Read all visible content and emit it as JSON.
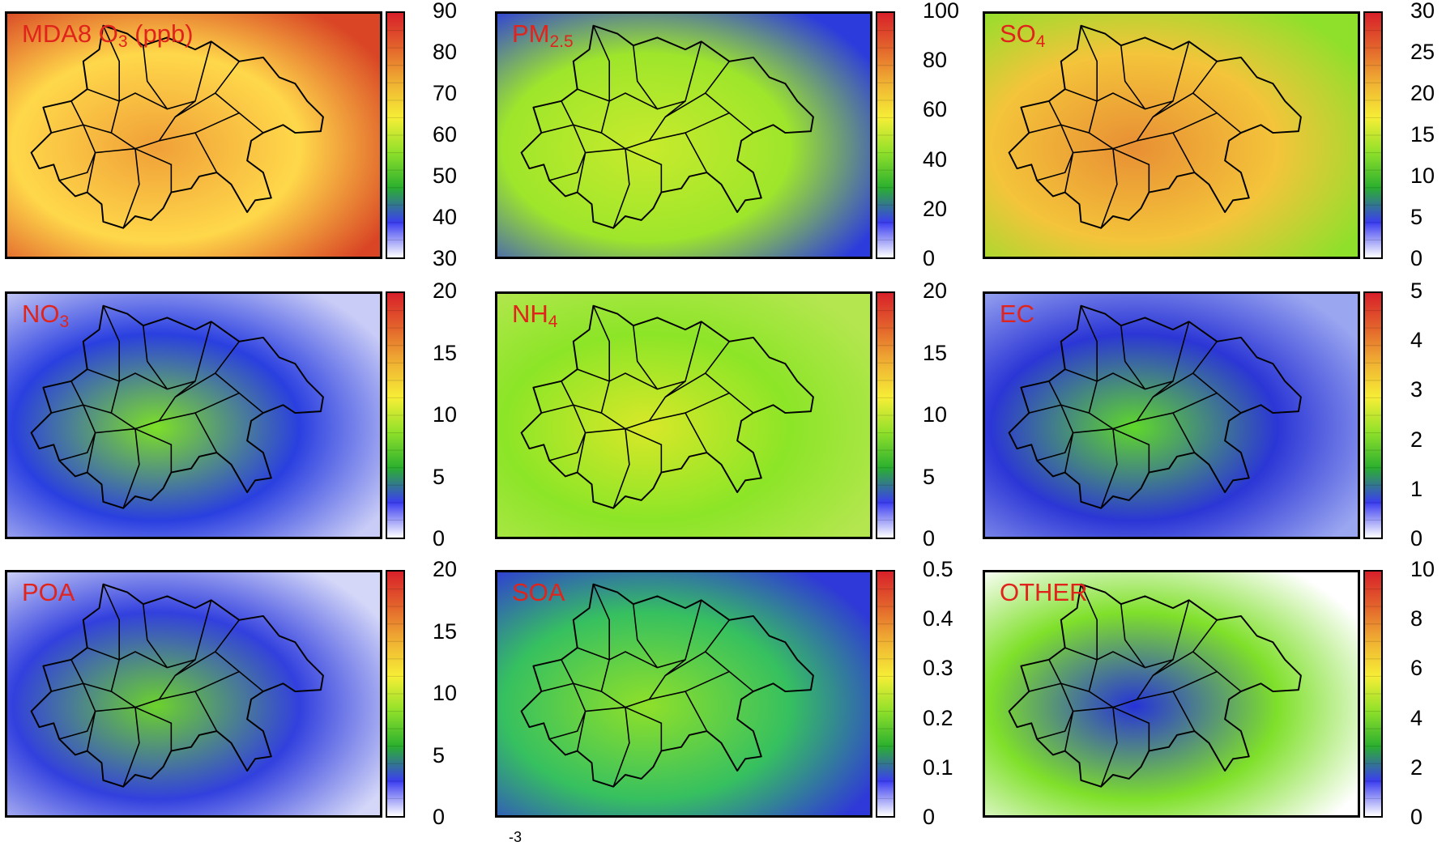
{
  "figure": {
    "footnote": "-3",
    "panels": [
      {
        "id": "o3",
        "label": "MDA8 O",
        "sub": "3",
        "suffix": " (ppb)",
        "ticks": [
          "90",
          "80",
          "70",
          "60",
          "50",
          "40",
          "30"
        ],
        "bg": [
          "#ffd84a",
          "#f0a038",
          "#d94525"
        ]
      },
      {
        "id": "pm25",
        "label": "PM",
        "sub": "2.5",
        "suffix": "",
        "ticks": [
          "100",
          "80",
          "60",
          "40",
          "20",
          "0"
        ],
        "bg": [
          "#9ee62b",
          "#c8ea2c",
          "#2c3cdc"
        ]
      },
      {
        "id": "so4",
        "label": "SO",
        "sub": "4",
        "suffix": "",
        "ticks": [
          "30",
          "25",
          "20",
          "15",
          "10",
          "5",
          "0"
        ],
        "bg": [
          "#f4c43a",
          "#e88f34",
          "#8fe02a"
        ]
      },
      {
        "id": "no3",
        "label": "NO",
        "sub": "3",
        "suffix": "",
        "ticks": [
          "20",
          "15",
          "10",
          "5",
          "0"
        ],
        "bg": [
          "#2a3fe0",
          "#7de026",
          "#c9ccf6"
        ]
      },
      {
        "id": "nh4",
        "label": "NH",
        "sub": "4",
        "suffix": "",
        "ticks": [
          "20",
          "15",
          "10",
          "5",
          "0"
        ],
        "bg": [
          "#8ce527",
          "#d8e829",
          "#b4e64f"
        ]
      },
      {
        "id": "ec",
        "label": "EC",
        "sub": "",
        "suffix": "",
        "ticks": [
          "5",
          "4",
          "3",
          "2",
          "1",
          "0"
        ],
        "bg": [
          "#2b36d6",
          "#5fd82a",
          "#9aa6f0"
        ]
      },
      {
        "id": "poa",
        "label": "POA",
        "sub": "",
        "suffix": "",
        "ticks": [
          "20",
          "15",
          "10",
          "5",
          "0"
        ],
        "bg": [
          "#3240de",
          "#6cd22c",
          "#d4d7f8"
        ]
      },
      {
        "id": "soa",
        "label": "SOA",
        "sub": "",
        "suffix": "",
        "ticks": [
          "0.5",
          "0.4",
          "0.3",
          "0.2",
          "0.1",
          "0"
        ],
        "bg": [
          "#36c060",
          "#8fe02a",
          "#2f38d8"
        ]
      },
      {
        "id": "other",
        "label": "OTHER",
        "sub": "",
        "suffix": "",
        "ticks": [
          "10",
          "8",
          "6",
          "4",
          "2",
          "0"
        ],
        "bg": [
          "#7fe02a",
          "#2633d8",
          "#ffffff"
        ]
      }
    ],
    "colorbar_colors": [
      "#ffffff",
      "#3b3df0",
      "#2bb02f",
      "#8fe02a",
      "#f6ee36",
      "#f0b133",
      "#e3642c",
      "#d8202a"
    ]
  }
}
